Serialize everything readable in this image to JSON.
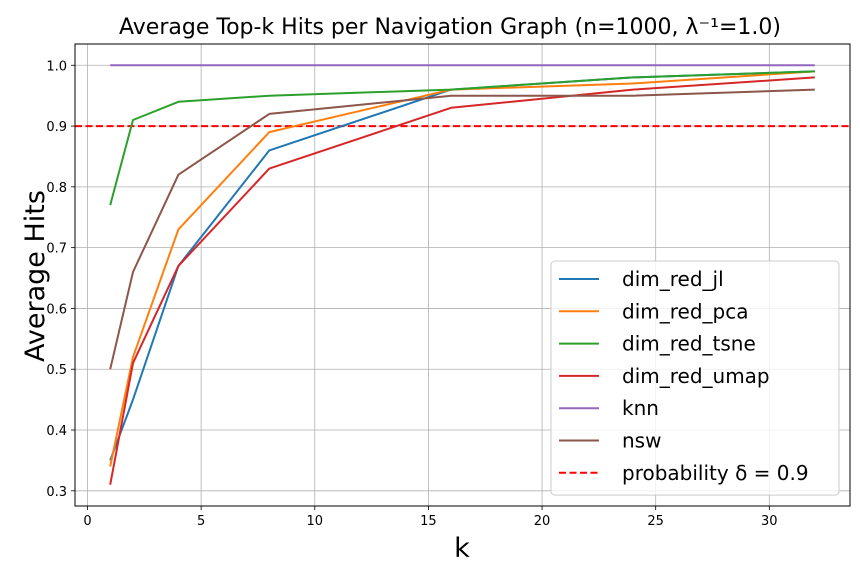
{
  "chart_data": {
    "type": "line",
    "title": "Average Top-k Hits per Navigation Graph (n=1000, λ⁻¹=1.0)",
    "xlabel": "k",
    "ylabel": "Average Hits",
    "xlim": [
      -0.55,
      33.55
    ],
    "ylim": [
      0.275,
      1.035
    ],
    "xticks": [
      0,
      5,
      10,
      15,
      20,
      25,
      30
    ],
    "yticks": [
      0.3,
      0.4,
      0.5,
      0.6,
      0.7,
      0.8,
      0.9,
      1.0
    ],
    "grid": true,
    "legend_position": "lower-right",
    "series": [
      {
        "name": "dim_red_jl",
        "color": "#1f77b4",
        "x": [
          1,
          2,
          4,
          8,
          16,
          24,
          32
        ],
        "y": [
          0.35,
          0.45,
          0.67,
          0.86,
          0.96,
          0.98,
          0.99
        ]
      },
      {
        "name": "dim_red_pca",
        "color": "#ff7f0e",
        "x": [
          1,
          2,
          4,
          8,
          16,
          24,
          32
        ],
        "y": [
          0.34,
          0.52,
          0.73,
          0.89,
          0.96,
          0.97,
          0.99
        ]
      },
      {
        "name": "dim_red_tsne",
        "color": "#2ca02c",
        "x": [
          1,
          2,
          4,
          8,
          16,
          24,
          32
        ],
        "y": [
          0.77,
          0.91,
          0.94,
          0.95,
          0.96,
          0.98,
          0.99
        ]
      },
      {
        "name": "dim_red_umap",
        "color": "#d62728",
        "x": [
          1,
          2,
          4,
          8,
          16,
          24,
          32
        ],
        "y": [
          0.31,
          0.51,
          0.67,
          0.83,
          0.93,
          0.96,
          0.98
        ]
      },
      {
        "name": "knn",
        "color": "#9467bd",
        "x": [
          1,
          2,
          4,
          8,
          16,
          24,
          32
        ],
        "y": [
          1.0,
          1.0,
          1.0,
          1.0,
          1.0,
          1.0,
          1.0
        ]
      },
      {
        "name": "nsw",
        "color": "#8c564b",
        "x": [
          1,
          2,
          4,
          8,
          16,
          24,
          32
        ],
        "y": [
          0.5,
          0.66,
          0.82,
          0.92,
          0.95,
          0.95,
          0.96
        ]
      }
    ],
    "reference_line": {
      "name": "probability δ = 0.9",
      "y": 0.9,
      "color": "#ff0000",
      "style": "dashed"
    }
  }
}
